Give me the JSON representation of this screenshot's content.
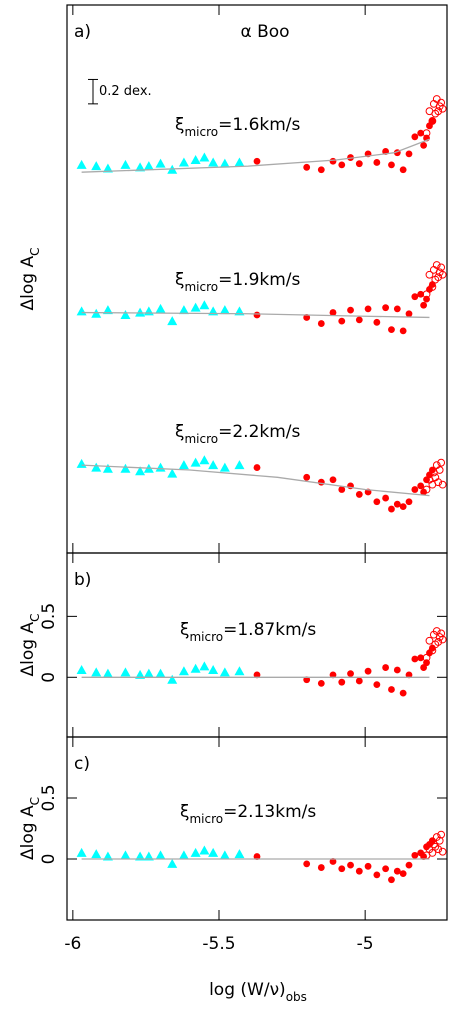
{
  "chart_data": [
    {
      "type": "scatter",
      "panel_label": "a)",
      "title": "α Boo",
      "ylabel": {
        "text": "Δlog A",
        "subscript": "C"
      },
      "scale_bar": {
        "label": "0.2 dex.",
        "value": 0.2
      },
      "xlim": [
        -6.02,
        -4.72
      ],
      "ylim": [
        0,
        4.49
      ],
      "annotations": [
        {
          "symbol": "ξ",
          "subscript": "micro",
          "text": "=1.6km/s"
        },
        {
          "symbol": "ξ",
          "subscript": "micro",
          "text": "=1.9km/s"
        },
        {
          "symbol": "ξ",
          "subscript": "micro",
          "text": "=2.2km/s"
        }
      ],
      "series": [
        {
          "marker": "triangle",
          "color": "#00ffff",
          "x": [
            -5.97,
            -5.92,
            -5.88,
            -5.82,
            -5.77,
            -5.74,
            -5.7,
            -5.66,
            -5.62,
            -5.58,
            -5.55,
            -5.52,
            -5.48,
            -5.43
          ],
          "values": [
            3.18,
            3.17,
            3.15,
            3.18,
            3.16,
            3.17,
            3.19,
            3.14,
            3.2,
            3.22,
            3.24,
            3.2,
            3.19,
            3.2
          ]
        },
        {
          "marker": "circle",
          "color": "#ff0000",
          "x": [
            -5.37,
            -5.2,
            -5.15,
            -5.11,
            -5.08,
            -5.05,
            -5.02,
            -4.99,
            -4.96,
            -4.93,
            -4.91,
            -4.89,
            -4.87,
            -4.85,
            -4.83,
            -4.81,
            -4.8,
            -4.79,
            -4.78,
            -4.77
          ],
          "values": [
            3.21,
            3.16,
            3.14,
            3.21,
            3.18,
            3.24,
            3.19,
            3.27,
            3.2,
            3.29,
            3.18,
            3.28,
            3.14,
            3.27,
            3.41,
            3.44,
            3.34,
            3.4,
            3.5,
            3.54
          ]
        },
        {
          "marker": "open-circle",
          "color": "#ff0000",
          "x": [
            -4.79,
            -4.78,
            -4.77,
            -4.765,
            -4.76,
            -4.755,
            -4.75,
            -4.745,
            -4.74,
            -4.735
          ],
          "values": [
            3.44,
            3.62,
            3.54,
            3.68,
            3.6,
            3.72,
            3.62,
            3.66,
            3.69,
            3.64
          ]
        },
        {
          "marker": "line",
          "color": "#aaaaaa",
          "x": [
            -5.97,
            -5.4,
            -5.1,
            -4.9,
            -4.78
          ],
          "values": [
            3.12,
            3.17,
            3.22,
            3.28,
            3.39
          ]
        },
        {
          "marker": "triangle",
          "color": "#00ffff",
          "x": [
            -5.97,
            -5.92,
            -5.88,
            -5.82,
            -5.77,
            -5.74,
            -5.7,
            -5.66,
            -5.62,
            -5.58,
            -5.55,
            -5.52,
            -5.48,
            -5.43
          ],
          "values": [
            1.98,
            1.96,
            1.99,
            1.95,
            1.97,
            1.98,
            2.0,
            1.9,
            1.99,
            2.01,
            2.03,
            1.98,
            1.99,
            1.98
          ]
        },
        {
          "marker": "circle",
          "color": "#ff0000",
          "x": [
            -5.37,
            -5.2,
            -5.15,
            -5.11,
            -5.08,
            -5.05,
            -5.02,
            -4.99,
            -4.96,
            -4.93,
            -4.91,
            -4.89,
            -4.87,
            -4.85,
            -4.83,
            -4.81,
            -4.8,
            -4.79,
            -4.78,
            -4.77
          ],
          "values": [
            1.95,
            1.93,
            1.88,
            1.97,
            1.9,
            1.99,
            1.91,
            2.0,
            1.89,
            2.01,
            1.83,
            2.0,
            1.82,
            1.96,
            2.1,
            2.12,
            2.03,
            2.08,
            2.16,
            2.2
          ]
        },
        {
          "marker": "open-circle",
          "color": "#ff0000",
          "x": [
            -4.79,
            -4.78,
            -4.77,
            -4.765,
            -4.76,
            -4.755,
            -4.75,
            -4.745,
            -4.74,
            -4.735
          ],
          "values": [
            2.12,
            2.28,
            2.18,
            2.32,
            2.24,
            2.36,
            2.26,
            2.3,
            2.34,
            2.28
          ]
        },
        {
          "marker": "line",
          "color": "#aaaaaa",
          "x": [
            -5.97,
            -5.4,
            -5.0,
            -4.78
          ],
          "values": [
            1.97,
            1.96,
            1.94,
            1.93
          ]
        },
        {
          "marker": "triangle",
          "color": "#00ffff",
          "x": [
            -5.97,
            -5.92,
            -5.88,
            -5.82,
            -5.77,
            -5.74,
            -5.7,
            -5.66,
            -5.62,
            -5.58,
            -5.55,
            -5.52,
            -5.48,
            -5.43
          ],
          "values": [
            0.73,
            0.7,
            0.69,
            0.69,
            0.67,
            0.69,
            0.7,
            0.65,
            0.72,
            0.74,
            0.76,
            0.72,
            0.7,
            0.72
          ]
        },
        {
          "marker": "circle",
          "color": "#ff0000",
          "x": [
            -5.37,
            -5.2,
            -5.15,
            -5.11,
            -5.08,
            -5.05,
            -5.02,
            -4.99,
            -4.96,
            -4.93,
            -4.91,
            -4.89,
            -4.87,
            -4.85,
            -4.83,
            -4.81,
            -4.8,
            -4.79,
            -4.78,
            -4.77
          ],
          "values": [
            0.7,
            0.62,
            0.58,
            0.6,
            0.52,
            0.55,
            0.48,
            0.5,
            0.42,
            0.45,
            0.36,
            0.4,
            0.38,
            0.42,
            0.52,
            0.55,
            0.5,
            0.6,
            0.64,
            0.68
          ]
        },
        {
          "marker": "open-circle",
          "color": "#ff0000",
          "x": [
            -4.79,
            -4.78,
            -4.77,
            -4.765,
            -4.76,
            -4.755,
            -4.75,
            -4.745,
            -4.74,
            -4.735
          ],
          "values": [
            0.52,
            0.6,
            0.56,
            0.66,
            0.62,
            0.72,
            0.58,
            0.68,
            0.74,
            0.56
          ]
        },
        {
          "marker": "line",
          "color": "#aaaaaa",
          "x": [
            -5.97,
            -5.6,
            -5.3,
            -5.0,
            -4.78
          ],
          "values": [
            0.72,
            0.68,
            0.62,
            0.52,
            0.47
          ]
        }
      ]
    },
    {
      "type": "scatter",
      "panel_label": "b)",
      "ylabel": {
        "text": "Δlog A",
        "subscript": "C"
      },
      "xlim": [
        -6.02,
        -4.72
      ],
      "ylim": [
        -0.49,
        1.02
      ],
      "yticks": [
        0,
        0.5
      ],
      "annotations": [
        {
          "symbol": "ξ",
          "subscript": "micro",
          "text": "=1.87km/s"
        }
      ],
      "series": [
        {
          "marker": "triangle",
          "color": "#00ffff",
          "x": [
            -5.97,
            -5.92,
            -5.88,
            -5.82,
            -5.77,
            -5.74,
            -5.7,
            -5.66,
            -5.62,
            -5.58,
            -5.55,
            -5.52,
            -5.48,
            -5.43
          ],
          "values": [
            0.06,
            0.04,
            0.03,
            0.04,
            0.02,
            0.03,
            0.03,
            -0.02,
            0.05,
            0.07,
            0.09,
            0.06,
            0.04,
            0.05
          ]
        },
        {
          "marker": "circle",
          "color": "#ff0000",
          "x": [
            -5.37,
            -5.2,
            -5.15,
            -5.11,
            -5.08,
            -5.05,
            -5.02,
            -4.99,
            -4.96,
            -4.93,
            -4.91,
            -4.89,
            -4.87,
            -4.85,
            -4.83,
            -4.81,
            -4.8,
            -4.79,
            -4.78,
            -4.77
          ],
          "values": [
            0.02,
            -0.02,
            -0.05,
            0.02,
            -0.04,
            0.03,
            -0.03,
            0.05,
            -0.06,
            0.08,
            -0.1,
            0.06,
            -0.13,
            0.02,
            0.15,
            0.16,
            0.08,
            0.12,
            0.2,
            0.24
          ]
        },
        {
          "marker": "open-circle",
          "color": "#ff0000",
          "x": [
            -4.79,
            -4.78,
            -4.77,
            -4.765,
            -4.76,
            -4.755,
            -4.75,
            -4.745,
            -4.74,
            -4.735
          ],
          "values": [
            0.16,
            0.3,
            0.22,
            0.35,
            0.27,
            0.38,
            0.29,
            0.33,
            0.36,
            0.31
          ]
        },
        {
          "marker": "line",
          "color": "#aaaaaa",
          "x": [
            -5.97,
            -4.78
          ],
          "values": [
            0,
            0
          ]
        }
      ]
    },
    {
      "type": "scatter",
      "panel_label": "c)",
      "ylabel": {
        "text": "Δlog A",
        "subscript": "C"
      },
      "xlabel": {
        "text": "log (W/ν)",
        "subscript": "obs"
      },
      "xlim": [
        -6.02,
        -4.72
      ],
      "xticks": [
        -6,
        -5.5,
        -5
      ],
      "ylim": [
        -0.5,
        1.0
      ],
      "yticks": [
        0,
        0.5
      ],
      "annotations": [
        {
          "symbol": "ξ",
          "subscript": "micro",
          "text": "=2.13km/s"
        }
      ],
      "series": [
        {
          "marker": "triangle",
          "color": "#00ffff",
          "x": [
            -5.97,
            -5.92,
            -5.88,
            -5.82,
            -5.77,
            -5.74,
            -5.7,
            -5.66,
            -5.62,
            -5.58,
            -5.55,
            -5.52,
            -5.48,
            -5.43
          ],
          "values": [
            0.05,
            0.04,
            0.02,
            0.03,
            0.02,
            0.02,
            0.03,
            -0.04,
            0.03,
            0.05,
            0.07,
            0.05,
            0.03,
            0.04
          ]
        },
        {
          "marker": "circle",
          "color": "#ff0000",
          "x": [
            -5.37,
            -5.2,
            -5.15,
            -5.11,
            -5.08,
            -5.05,
            -5.02,
            -4.99,
            -4.96,
            -4.93,
            -4.91,
            -4.89,
            -4.87,
            -4.85,
            -4.83,
            -4.81,
            -4.8,
            -4.79,
            -4.78,
            -4.77
          ],
          "values": [
            0.02,
            -0.04,
            -0.07,
            -0.02,
            -0.08,
            -0.05,
            -0.1,
            -0.06,
            -0.13,
            -0.08,
            -0.17,
            -0.1,
            -0.12,
            -0.05,
            0.03,
            0.05,
            0.02,
            0.1,
            0.12,
            0.15
          ]
        },
        {
          "marker": "open-circle",
          "color": "#ff0000",
          "x": [
            -4.79,
            -4.78,
            -4.77,
            -4.765,
            -4.76,
            -4.755,
            -4.75,
            -4.745,
            -4.74,
            -4.735
          ],
          "values": [
            0.03,
            0.08,
            0.05,
            0.12,
            0.1,
            0.18,
            0.08,
            0.15,
            0.2,
            0.06
          ]
        },
        {
          "marker": "line",
          "color": "#aaaaaa",
          "x": [
            -5.97,
            -4.78
          ],
          "values": [
            0,
            0
          ]
        }
      ]
    }
  ]
}
